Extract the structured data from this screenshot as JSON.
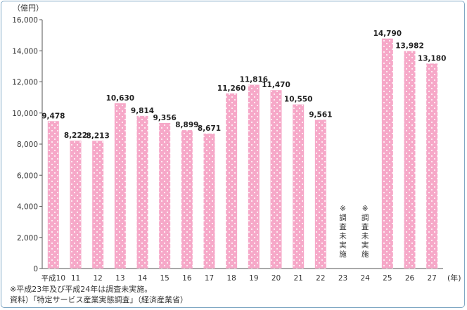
{
  "chart_data": {
    "type": "bar",
    "unit_label": "（億円）",
    "year_suffix": "(年)",
    "categories": [
      "平成10",
      "11",
      "12",
      "13",
      "14",
      "15",
      "16",
      "17",
      "18",
      "19",
      "20",
      "21",
      "22",
      "23",
      "24",
      "25",
      "26",
      "27"
    ],
    "values": [
      9478,
      8222,
      8213,
      10630,
      9814,
      9356,
      8899,
      8671,
      11260,
      11816,
      11470,
      10550,
      9561,
      null,
      null,
      14790,
      13982,
      13180
    ],
    "value_labels": [
      "9,478",
      "8,222",
      "8,213",
      "10,630",
      "9,814",
      "9,356",
      "8,899",
      "8,671",
      "11,260",
      "11,816",
      "11,470",
      "10,550",
      "9,561",
      "",
      "",
      "14,790",
      "13,982",
      "13,180"
    ],
    "not_surveyed_label": "※調査未実施",
    "not_surveyed_categories": [
      "23",
      "24"
    ],
    "y_ticks": [
      0,
      2000,
      4000,
      6000,
      8000,
      10000,
      12000,
      14000,
      16000
    ],
    "y_tick_labels": [
      "0",
      "2,000",
      "4,000",
      "6,000",
      "8,000",
      "10,000",
      "12,000",
      "14,000",
      "16,000"
    ],
    "ylim": [
      0,
      16000
    ],
    "bar_color": "#f6a8c8",
    "dot_color": "#ffffff",
    "grid": false
  },
  "notes": {
    "line1": "※平成23年及び平成24年は調査未実施。",
    "line2": "資料）「特定サービス産業実態調査」（経済産業省）"
  }
}
